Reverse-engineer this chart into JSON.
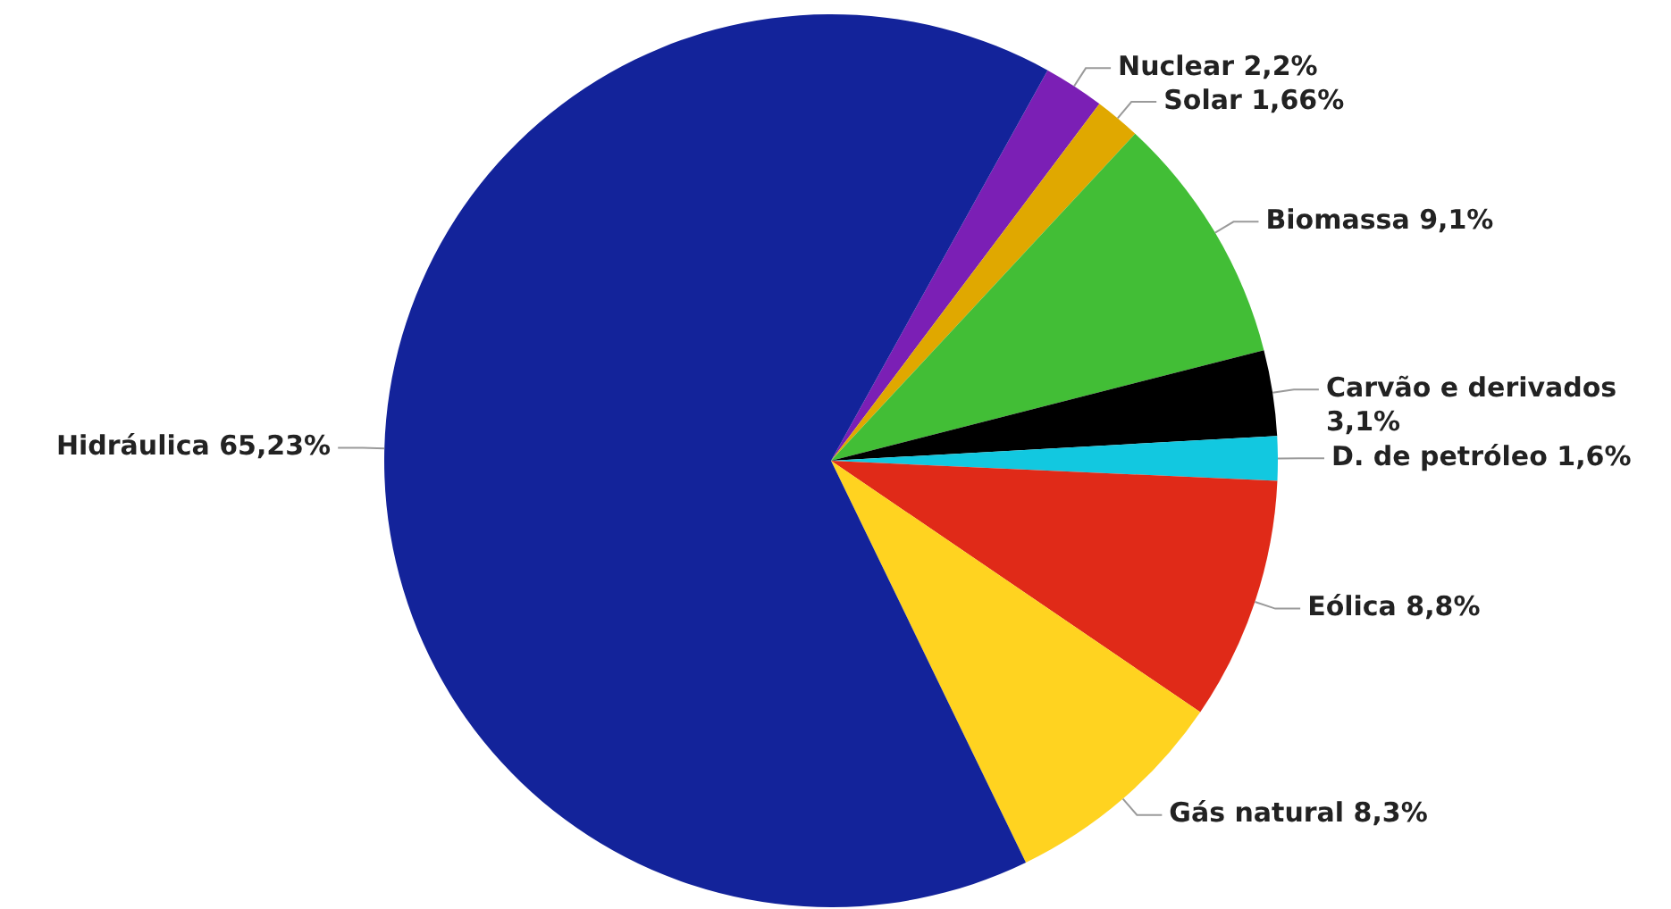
{
  "chart_data": {
    "type": "pie",
    "categories": [
      "Nuclear",
      "Solar",
      "Biomassa",
      "Carvão e derivados",
      "D. de petróleo",
      "Eólica",
      "Gás natural",
      "Hidráulica"
    ],
    "values": [
      2.2,
      1.66,
      9.1,
      3.1,
      1.6,
      8.8,
      8.3,
      65.23
    ],
    "value_labels": [
      "2,2%",
      "1,66%",
      "9,1%",
      "3,1%",
      "1,6%",
      "8,8%",
      "8,3%",
      "65,23%"
    ],
    "colors": [
      "#7b1fb5",
      "#e0a800",
      "#42be36",
      "#000000",
      "#12c8e0",
      "#e02a18",
      "#ffd320",
      "#13239a"
    ]
  }
}
